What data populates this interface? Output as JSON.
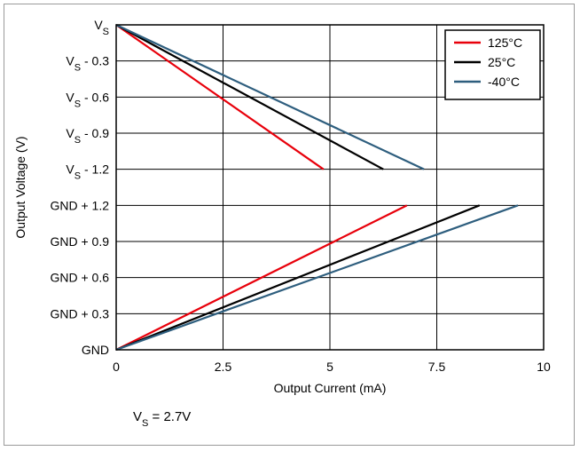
{
  "chart_data": {
    "type": "line",
    "xlabel": "Output Current (mA)",
    "ylabel": "Output Voltage (V)",
    "xlim": [
      0,
      10
    ],
    "xticks": [
      "0",
      "2.5",
      "5",
      "7.5",
      "10"
    ],
    "yticks": [
      {
        "main": "GND",
        "sub": ""
      },
      {
        "main": "GND + 0.3",
        "sub": ""
      },
      {
        "main": "GND + 0.6",
        "sub": ""
      },
      {
        "main": "GND + 0.9",
        "sub": ""
      },
      {
        "main": "GND + 1.2",
        "sub": ""
      },
      {
        "main": "V",
        "sub": "S",
        "rest": " - 1.2"
      },
      {
        "main": "V",
        "sub": "S",
        "rest": " - 0.9"
      },
      {
        "main": "V",
        "sub": "S",
        "rest": " - 0.6"
      },
      {
        "main": "V",
        "sub": "S",
        "rest": " - 0.3"
      },
      {
        "main": "V",
        "sub": "S",
        "rest": ""
      }
    ],
    "grid": true,
    "legend_position": "top-right",
    "note": {
      "main": "V",
      "sub": "S",
      "rest": " = 2.7V"
    },
    "series": [
      {
        "name": "125°C",
        "color": "#e8000b",
        "source_x": [
          0,
          4.85
        ],
        "source_tick": [
          9,
          5
        ],
        "sink_x": [
          0,
          0.6,
          6.8
        ],
        "sink_tick": [
          0,
          0.35,
          4
        ]
      },
      {
        "name": "25°C",
        "color": "#000000",
        "source_x": [
          0,
          6.25
        ],
        "source_tick": [
          9,
          5
        ],
        "sink_x": [
          0,
          8.5
        ],
        "sink_tick": [
          0,
          4
        ]
      },
      {
        "name": "-40°C",
        "color": "#2e5e7e",
        "source_x": [
          0,
          7.2
        ],
        "source_tick": [
          9,
          5
        ],
        "sink_x": [
          0,
          9.4
        ],
        "sink_tick": [
          0,
          4
        ]
      }
    ]
  }
}
